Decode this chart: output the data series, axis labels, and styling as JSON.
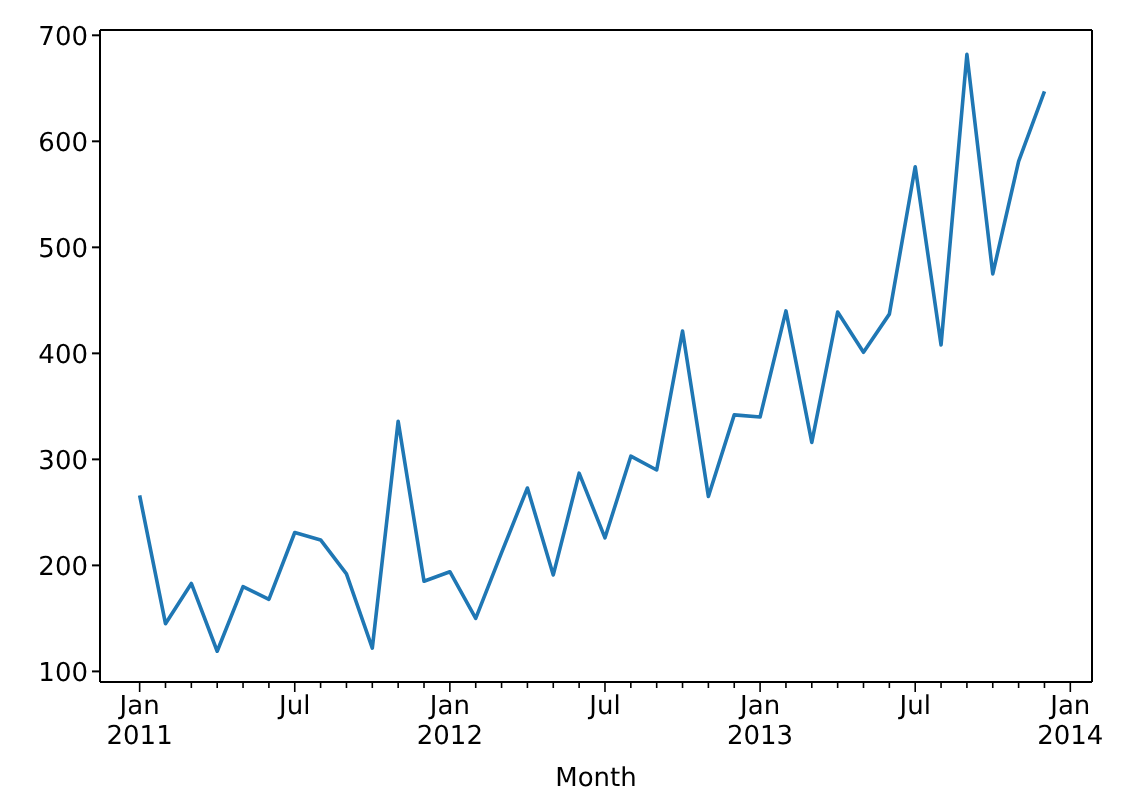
{
  "chart_data": {
    "type": "line",
    "xlabel": "Month",
    "x": [
      "2011-01",
      "2011-02",
      "2011-03",
      "2011-04",
      "2011-05",
      "2011-06",
      "2011-07",
      "2011-08",
      "2011-09",
      "2011-10",
      "2011-11",
      "2011-12",
      "2012-01",
      "2012-02",
      "2012-03",
      "2012-04",
      "2012-05",
      "2012-06",
      "2012-07",
      "2012-08",
      "2012-09",
      "2012-10",
      "2012-11",
      "2012-12",
      "2013-01",
      "2013-02",
      "2013-03",
      "2013-04",
      "2013-05",
      "2013-06",
      "2013-07",
      "2013-08",
      "2013-09",
      "2013-10",
      "2013-11",
      "2013-12"
    ],
    "series": [
      {
        "color": "#1f77b4",
        "values": [
          266,
          145,
          183,
          119,
          180,
          168,
          231,
          224,
          192,
          122,
          336,
          185,
          194,
          150,
          212,
          273,
          191,
          287,
          226,
          303,
          290,
          421,
          265,
          342,
          340,
          440,
          316,
          439,
          401,
          437,
          576,
          408,
          682,
          475,
          581,
          647
        ]
      }
    ],
    "xlim": [
      "2010-11-15",
      "2014-01-27"
    ],
    "xticks": [
      {
        "value": "2011-01",
        "label": "Jan\n2011"
      },
      {
        "value": "2011-02",
        "label": null
      },
      {
        "value": "2011-03",
        "label": null
      },
      {
        "value": "2011-04",
        "label": null
      },
      {
        "value": "2011-05",
        "label": null
      },
      {
        "value": "2011-06",
        "label": null
      },
      {
        "value": "2011-07",
        "label": "Jul"
      },
      {
        "value": "2011-08",
        "label": null
      },
      {
        "value": "2011-09",
        "label": null
      },
      {
        "value": "2011-10",
        "label": null
      },
      {
        "value": "2011-11",
        "label": null
      },
      {
        "value": "2011-12",
        "label": null
      },
      {
        "value": "2012-01",
        "label": "Jan\n2012"
      },
      {
        "value": "2012-02",
        "label": null
      },
      {
        "value": "2012-03",
        "label": null
      },
      {
        "value": "2012-04",
        "label": null
      },
      {
        "value": "2012-05",
        "label": null
      },
      {
        "value": "2012-06",
        "label": null
      },
      {
        "value": "2012-07",
        "label": "Jul"
      },
      {
        "value": "2012-08",
        "label": null
      },
      {
        "value": "2012-09",
        "label": null
      },
      {
        "value": "2012-10",
        "label": null
      },
      {
        "value": "2012-11",
        "label": null
      },
      {
        "value": "2012-12",
        "label": null
      },
      {
        "value": "2013-01",
        "label": "Jan\n2013"
      },
      {
        "value": "2013-02",
        "label": null
      },
      {
        "value": "2013-03",
        "label": null
      },
      {
        "value": "2013-04",
        "label": null
      },
      {
        "value": "2013-05",
        "label": null
      },
      {
        "value": "2013-06",
        "label": null
      },
      {
        "value": "2013-07",
        "label": "Jul"
      },
      {
        "value": "2013-08",
        "label": null
      },
      {
        "value": "2013-09",
        "label": null
      },
      {
        "value": "2013-10",
        "label": null
      },
      {
        "value": "2013-11",
        "label": null
      },
      {
        "value": "2013-12",
        "label": null
      },
      {
        "value": "2014-01",
        "label": "Jan\n2014"
      }
    ],
    "ylim": [
      90,
      705
    ],
    "yticks": [
      100,
      200,
      300,
      400,
      500,
      600,
      700
    ],
    "grid": false,
    "legend": false,
    "marker": "none",
    "line_style": "solid"
  }
}
